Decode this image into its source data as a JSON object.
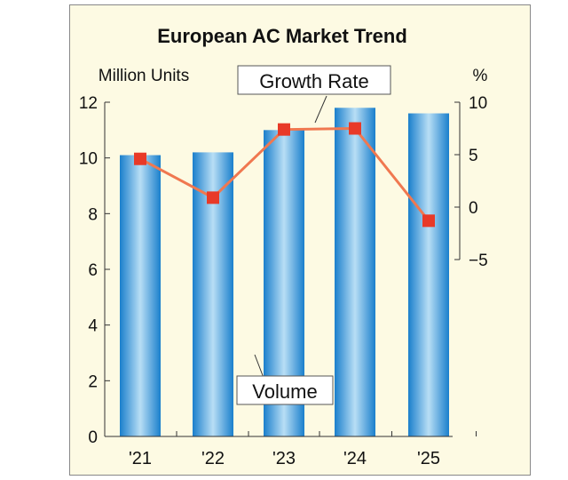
{
  "chart_data": {
    "type": "bar+line",
    "title": "European AC Market Trend",
    "categories": [
      "'21",
      "'22",
      "'23",
      "'24",
      "'25"
    ],
    "series": [
      {
        "name": "Volume",
        "axis": "left",
        "type": "bar",
        "values": [
          10.1,
          10.2,
          11.0,
          11.8,
          11.6
        ]
      },
      {
        "name": "Growth Rate",
        "axis": "right",
        "type": "line",
        "values": [
          4.6,
          0.9,
          7.4,
          7.5,
          -1.3
        ]
      }
    ],
    "ylabel_left": "Million Units",
    "ylabel_right": "%",
    "ylim_left": [
      0,
      12
    ],
    "yticks_left": [
      0,
      2,
      4,
      6,
      8,
      10,
      12
    ],
    "ylim_right": [
      -5,
      10
    ],
    "yticks_right": [
      "10",
      "5",
      "0",
      "−5"
    ],
    "yticks_right_values": [
      10,
      5,
      0,
      -5
    ],
    "annotations": [
      "Growth Rate",
      "Volume"
    ],
    "grid": false,
    "colors": {
      "bar": "#1e88d0",
      "line": "#f07850",
      "marker": "#e83a28",
      "background": "#fdfae3"
    }
  }
}
